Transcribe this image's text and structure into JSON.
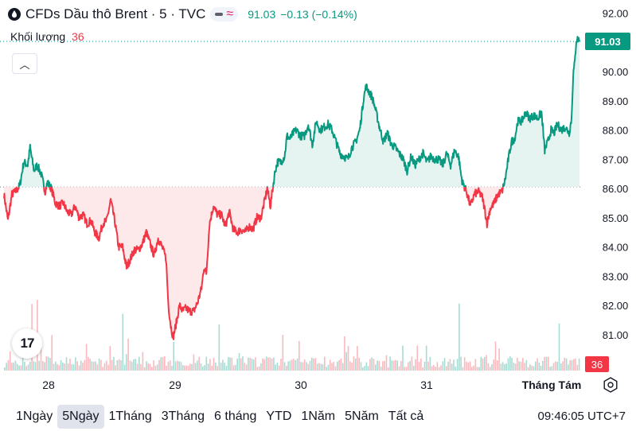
{
  "header": {
    "symbol_title": "CFDs Dầu thô Brent · 5 · TVC",
    "last_price": "91.03",
    "change": "−0.13 (−0.14%)",
    "volume_label": "Khối lượng",
    "volume_value": "36"
  },
  "price_tag": "91.03",
  "volume_tag": "36",
  "logo_text": "17",
  "time_ranges": [
    "1Ngày",
    "5Ngày",
    "1Tháng",
    "3Tháng",
    "6 tháng",
    "YTD",
    "1Năm",
    "5Năm",
    "Tất cả"
  ],
  "selected_range": "5Ngày",
  "clock": "09:46:05 UTC+7",
  "icons": [
    "oil-drop-icon",
    "chevron-up-icon",
    "gear-icon"
  ],
  "colors": {
    "up": "#089981",
    "down": "#f23645",
    "up_fill": "#e6f4f1",
    "down_fill": "#fde8ea"
  },
  "chart_data": {
    "type": "area",
    "baseline": 86.05,
    "ylim": [
      80.3,
      92.3
    ],
    "y_ticks": [
      "92.00",
      "91.00",
      "90.00",
      "89.00",
      "88.00",
      "87.00",
      "86.00",
      "85.00",
      "84.00",
      "83.00",
      "82.00",
      "81.00"
    ],
    "x_ticks": [
      "28",
      "29",
      "30",
      "31",
      "Tháng Tám"
    ],
    "price_anchors": [
      [
        0,
        85.8
      ],
      [
        5,
        84.9
      ],
      [
        10,
        85.8
      ],
      [
        15,
        85.9
      ],
      [
        20,
        86.1
      ],
      [
        25,
        86.9
      ],
      [
        30,
        86.8
      ],
      [
        33,
        87.4
      ],
      [
        38,
        86.6
      ],
      [
        42,
        86.8
      ],
      [
        47,
        86.5
      ],
      [
        52,
        85.9
      ],
      [
        55,
        86.2
      ],
      [
        60,
        86.0
      ],
      [
        65,
        85.5
      ],
      [
        70,
        85.4
      ],
      [
        75,
        85.5
      ],
      [
        80,
        85.2
      ],
      [
        85,
        85.1
      ],
      [
        90,
        85.4
      ],
      [
        95,
        85.0
      ],
      [
        100,
        85.1
      ],
      [
        105,
        84.8
      ],
      [
        110,
        84.9
      ],
      [
        115,
        84.5
      ],
      [
        120,
        84.3
      ],
      [
        125,
        84.8
      ],
      [
        130,
        84.9
      ],
      [
        135,
        85.6
      ],
      [
        140,
        84.9
      ],
      [
        145,
        84.0
      ],
      [
        150,
        84.0
      ],
      [
        155,
        83.3
      ],
      [
        160,
        83.6
      ],
      [
        165,
        83.9
      ],
      [
        170,
        83.9
      ],
      [
        175,
        84.1
      ],
      [
        180,
        84.5
      ],
      [
        185,
        84.1
      ],
      [
        190,
        83.7
      ],
      [
        195,
        84.3
      ],
      [
        200,
        84.0
      ],
      [
        205,
        83.6
      ],
      [
        208,
        82.0
      ],
      [
        211,
        81.3
      ],
      [
        214,
        80.9
      ],
      [
        218,
        81.4
      ],
      [
        222,
        82.0
      ],
      [
        226,
        81.8
      ],
      [
        230,
        81.9
      ],
      [
        235,
        81.8
      ],
      [
        240,
        81.8
      ],
      [
        245,
        82.1
      ],
      [
        250,
        82.6
      ],
      [
        253,
        83.3
      ],
      [
        256,
        83.1
      ],
      [
        260,
        84.8
      ],
      [
        265,
        85.4
      ],
      [
        270,
        85.1
      ],
      [
        275,
        85.1
      ],
      [
        280,
        84.7
      ],
      [
        285,
        85.2
      ],
      [
        290,
        84.6
      ],
      [
        295,
        84.5
      ],
      [
        300,
        84.6
      ],
      [
        305,
        84.5
      ],
      [
        310,
        84.7
      ],
      [
        315,
        84.6
      ],
      [
        320,
        85.0
      ],
      [
        325,
        85.0
      ],
      [
        330,
        85.6
      ],
      [
        333,
        86.0
      ],
      [
        337,
        85.4
      ],
      [
        340,
        86.0
      ],
      [
        343,
        86.6
      ],
      [
        346,
        86.9
      ],
      [
        350,
        86.9
      ],
      [
        355,
        87.1
      ],
      [
        358,
        87.8
      ],
      [
        362,
        87.7
      ],
      [
        366,
        87.9
      ],
      [
        370,
        88.0
      ],
      [
        375,
        87.8
      ],
      [
        380,
        87.8
      ],
      [
        385,
        88.2
      ],
      [
        390,
        87.5
      ],
      [
        395,
        88.3
      ],
      [
        400,
        88.0
      ],
      [
        405,
        88.1
      ],
      [
        410,
        88.2
      ],
      [
        415,
        88.0
      ],
      [
        420,
        87.6
      ],
      [
        425,
        87.2
      ],
      [
        430,
        87.1
      ],
      [
        435,
        87.0
      ],
      [
        440,
        87.4
      ],
      [
        445,
        87.6
      ],
      [
        450,
        88.0
      ],
      [
        455,
        89.1
      ],
      [
        458,
        89.5
      ],
      [
        462,
        89.3
      ],
      [
        466,
        89.1
      ],
      [
        470,
        88.7
      ],
      [
        475,
        88.1
      ],
      [
        480,
        87.6
      ],
      [
        485,
        87.9
      ],
      [
        490,
        87.5
      ],
      [
        495,
        87.4
      ],
      [
        500,
        87.2
      ],
      [
        505,
        87.0
      ],
      [
        510,
        86.6
      ],
      [
        515,
        87.1
      ],
      [
        520,
        86.8
      ],
      [
        525,
        87.0
      ],
      [
        530,
        87.2
      ],
      [
        535,
        86.9
      ],
      [
        540,
        87.1
      ],
      [
        545,
        87.0
      ],
      [
        550,
        87.0
      ],
      [
        555,
        86.8
      ],
      [
        560,
        87.2
      ],
      [
        565,
        86.8
      ],
      [
        570,
        87.3
      ],
      [
        575,
        87.1
      ],
      [
        578,
        86.5
      ],
      [
        580,
        86.2
      ],
      [
        585,
        85.9
      ],
      [
        590,
        85.4
      ],
      [
        595,
        85.8
      ],
      [
        600,
        85.9
      ],
      [
        605,
        85.7
      ],
      [
        608,
        85.3
      ],
      [
        611,
        84.8
      ],
      [
        615,
        85.3
      ],
      [
        620,
        85.5
      ],
      [
        625,
        85.8
      ],
      [
        630,
        85.9
      ],
      [
        634,
        86.3
      ],
      [
        638,
        87.0
      ],
      [
        642,
        87.6
      ],
      [
        646,
        87.7
      ],
      [
        650,
        88.3
      ],
      [
        655,
        88.3
      ],
      [
        660,
        88.6
      ],
      [
        665,
        88.4
      ],
      [
        670,
        88.5
      ],
      [
        675,
        88.4
      ],
      [
        680,
        88.6
      ],
      [
        684,
        87.3
      ],
      [
        688,
        87.6
      ],
      [
        692,
        88.0
      ],
      [
        696,
        87.9
      ],
      [
        700,
        88.2
      ],
      [
        705,
        88.0
      ],
      [
        710,
        88.1
      ],
      [
        715,
        87.9
      ],
      [
        718,
        88.4
      ],
      [
        720,
        89.9
      ],
      [
        722,
        90.3
      ],
      [
        724,
        91.1
      ],
      [
        727,
        91.1
      ],
      [
        728,
        91.03
      ]
    ]
  }
}
